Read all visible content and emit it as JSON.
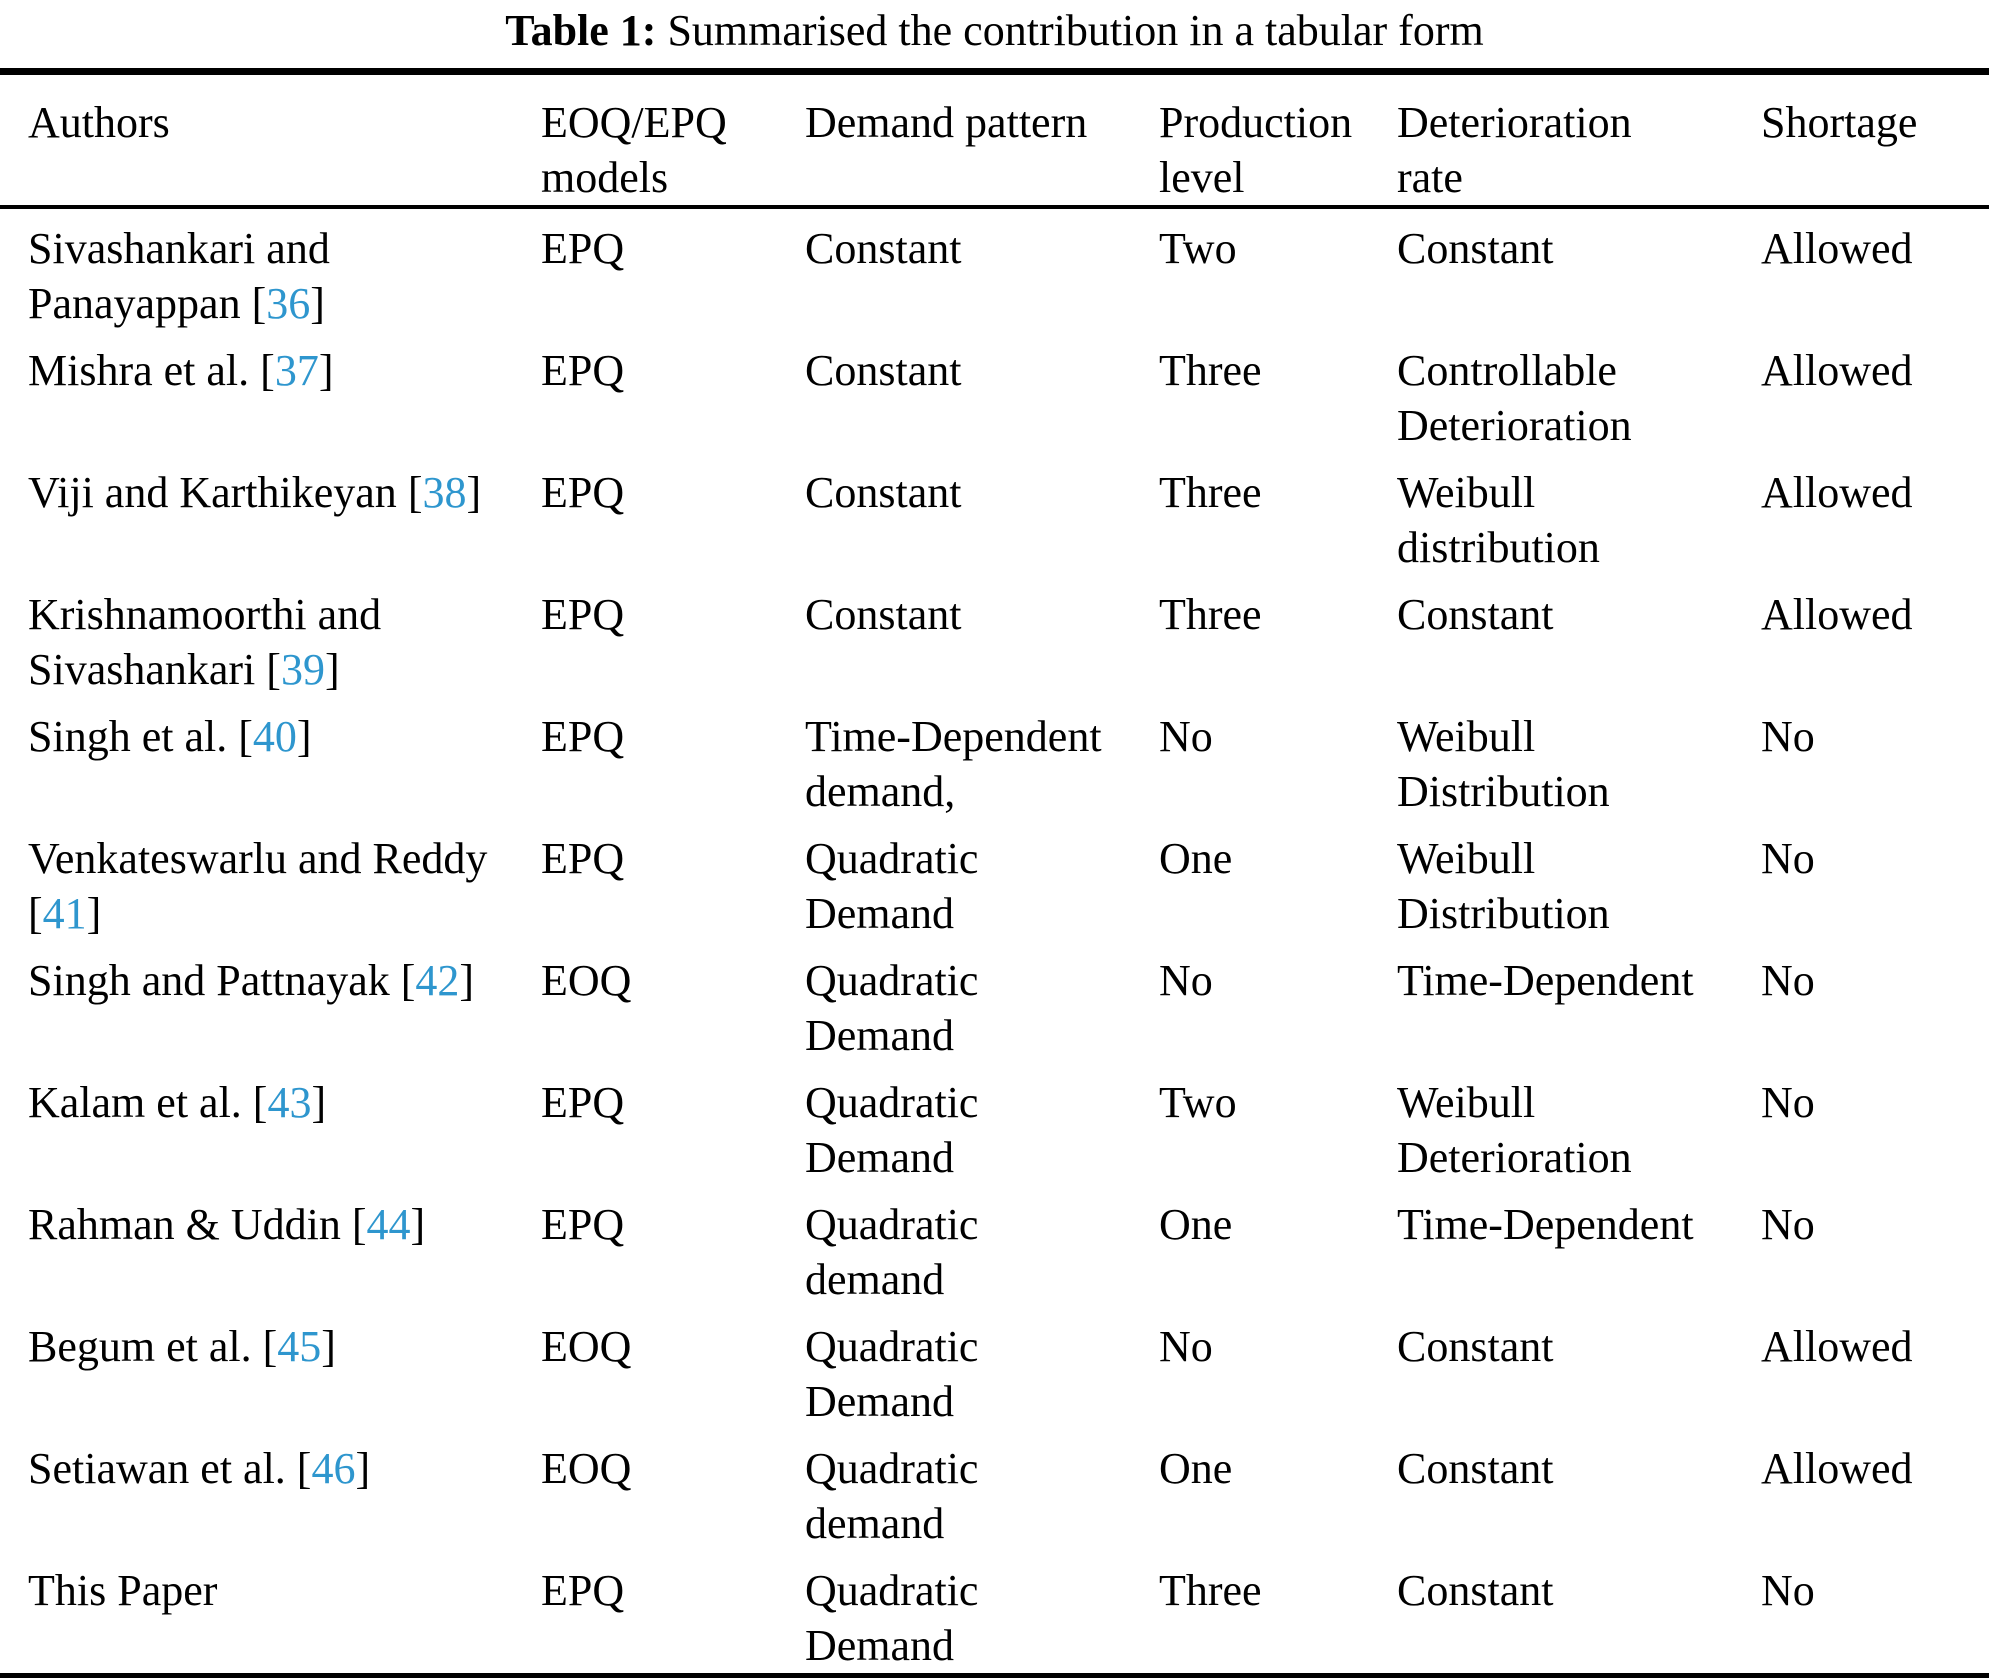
{
  "colors": {
    "citation": "#2E96CE"
  },
  "title": {
    "label": "Table 1:",
    "rest": " Summarised the contribution in a tabular form"
  },
  "table": {
    "headers": {
      "authors": "Authors",
      "models": "EOQ/EPQ\nmodels",
      "demand": "Demand pattern",
      "production": "Production\nlevel",
      "deterioration": "Deterioration\nrate",
      "shortage": "Shortage"
    },
    "rows": [
      {
        "author": "Sivashankari and\nPanayappan ",
        "open": "[",
        "ref": "36",
        "close": "]",
        "model": "EPQ",
        "demand": "Constant",
        "production": "Two",
        "deterioration": "Constant",
        "shortage": "Allowed"
      },
      {
        "author": "Mishra et al. ",
        "open": "[",
        "ref": "37",
        "close": "]",
        "model": "EPQ",
        "demand": "Constant",
        "production": "Three",
        "deterioration": "Controllable\nDeterioration",
        "shortage": "Allowed"
      },
      {
        "author": "Viji and Karthikeyan ",
        "open": "[",
        "ref": "38",
        "close": "]",
        "model": "EPQ",
        "demand": "Constant",
        "production": "Three",
        "deterioration": "Weibull\ndistribution",
        "shortage": "Allowed"
      },
      {
        "author": "Krishnamoorthi and\nSivashankari ",
        "open": "[",
        "ref": "39",
        "close": "]",
        "model": "EPQ",
        "demand": "Constant",
        "production": "Three",
        "deterioration": "Constant",
        "shortage": "Allowed"
      },
      {
        "author": "Singh et al. ",
        "open": "[",
        "ref": "40",
        "close": "]",
        "model": "EPQ",
        "demand": "Time-Dependent\ndemand,",
        "production": "No",
        "deterioration": "Weibull\nDistribution",
        "shortage": "No"
      },
      {
        "author": "Venkateswarlu and Reddy\n",
        "open": "[",
        "ref": "41",
        "close": "]",
        "model": "EPQ",
        "demand": "Quadratic\nDemand",
        "production": "One",
        "deterioration": "Weibull\nDistribution",
        "shortage": "No"
      },
      {
        "author": "Singh and Pattnayak ",
        "open": "[",
        "ref": "42",
        "close": "]",
        "model": "EOQ",
        "demand": "Quadratic\nDemand",
        "production": "No",
        "deterioration": "Time-Dependent",
        "shortage": "No"
      },
      {
        "author": "Kalam et al. ",
        "open": "[",
        "ref": "43",
        "close": "]",
        "model": "EPQ",
        "demand": "Quadratic\nDemand",
        "production": "Two",
        "deterioration": "Weibull\nDeterioration",
        "shortage": "No"
      },
      {
        "author": "Rahman & Uddin ",
        "open": "[",
        "ref": "44",
        "close": "]",
        "model": "EPQ",
        "demand": "Quadratic\ndemand",
        "production": "One",
        "deterioration": "Time-Dependent",
        "shortage": "No"
      },
      {
        "author": "Begum et al. ",
        "open": "[",
        "ref": "45",
        "close": "]",
        "model": "EOQ",
        "demand": "Quadratic\nDemand",
        "production": "No",
        "deterioration": "Constant",
        "shortage": "Allowed"
      },
      {
        "author": "Setiawan et al. ",
        "open": "[",
        "ref": "46",
        "close": "]",
        "model": "EOQ",
        "demand": "Quadratic\ndemand",
        "production": "One",
        "deterioration": "Constant",
        "shortage": "Allowed"
      },
      {
        "author": "This Paper",
        "open": null,
        "ref": null,
        "close": null,
        "model": "EPQ",
        "demand": "Quadratic\nDemand",
        "production": "Three",
        "deterioration": "Constant",
        "shortage": "No"
      }
    ]
  }
}
